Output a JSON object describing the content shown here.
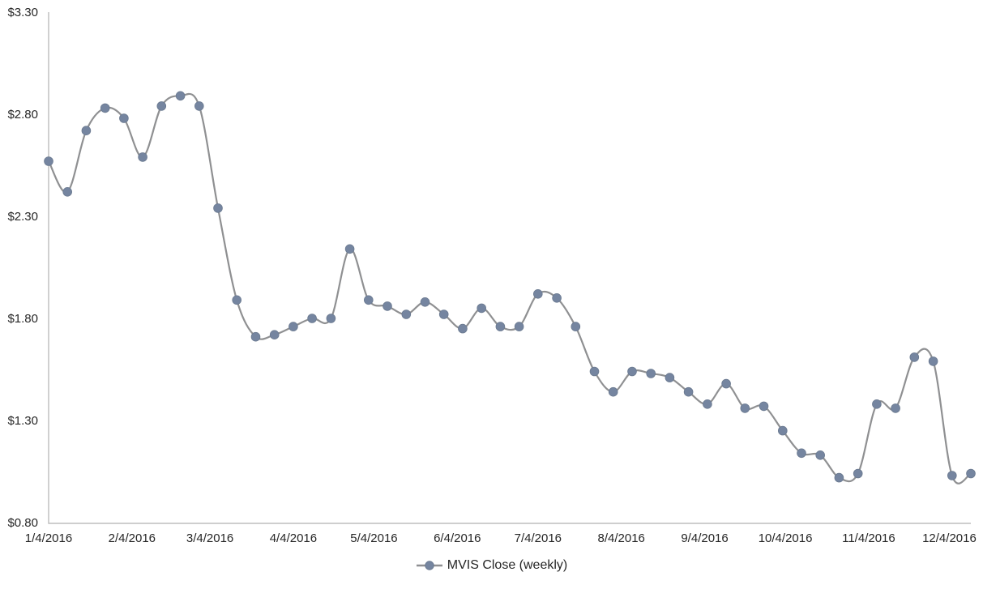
{
  "chart_data": {
    "type": "line",
    "title": "",
    "legend_position": "bottom",
    "grid": false,
    "smoothed": true,
    "marker_shape": "circle",
    "series": [
      {
        "name": "MVIS Close (weekly)",
        "dates": [
          "1/4/2016",
          "1/11/2016",
          "1/18/2016",
          "1/25/2016",
          "2/1/2016",
          "2/8/2016",
          "2/15/2016",
          "2/22/2016",
          "2/29/2016",
          "3/7/2016",
          "3/14/2016",
          "3/21/2016",
          "3/28/2016",
          "4/4/2016",
          "4/11/2016",
          "4/18/2016",
          "4/25/2016",
          "5/2/2016",
          "5/9/2016",
          "5/16/2016",
          "5/23/2016",
          "5/30/2016",
          "6/6/2016",
          "6/13/2016",
          "6/20/2016",
          "6/27/2016",
          "7/4/2016",
          "7/11/2016",
          "7/18/2016",
          "7/25/2016",
          "8/1/2016",
          "8/8/2016",
          "8/15/2016",
          "8/22/2016",
          "8/29/2016",
          "9/5/2016",
          "9/12/2016",
          "9/19/2016",
          "9/26/2016",
          "10/3/2016",
          "10/10/2016",
          "10/17/2016",
          "10/24/2016",
          "10/31/2016",
          "11/7/2016",
          "11/14/2016",
          "11/21/2016",
          "11/28/2016",
          "12/5/2016",
          "12/12/2016"
        ],
        "values": [
          2.57,
          2.42,
          2.72,
          2.83,
          2.78,
          2.59,
          2.84,
          2.89,
          2.84,
          2.34,
          1.89,
          1.71,
          1.72,
          1.76,
          1.8,
          1.8,
          2.14,
          1.89,
          1.86,
          1.82,
          1.88,
          1.82,
          1.75,
          1.85,
          1.76,
          1.76,
          1.92,
          1.9,
          1.76,
          1.54,
          1.44,
          1.54,
          1.53,
          1.51,
          1.44,
          1.38,
          1.48,
          1.36,
          1.37,
          1.25,
          1.14,
          1.13,
          1.02,
          1.04,
          1.38,
          1.36,
          1.61,
          1.59,
          1.03,
          1.04
        ]
      }
    ],
    "x_axis": {
      "ticks": [
        {
          "label": "1/4/2016",
          "day": 0
        },
        {
          "label": "2/4/2016",
          "day": 31
        },
        {
          "label": "3/4/2016",
          "day": 60
        },
        {
          "label": "4/4/2016",
          "day": 91
        },
        {
          "label": "5/4/2016",
          "day": 121
        },
        {
          "label": "6/4/2016",
          "day": 152
        },
        {
          "label": "7/4/2016",
          "day": 182
        },
        {
          "label": "8/4/2016",
          "day": 213
        },
        {
          "label": "9/4/2016",
          "day": 244
        },
        {
          "label": "10/4/2016",
          "day": 274
        },
        {
          "label": "11/4/2016",
          "day": 305
        },
        {
          "label": "12/4/2016",
          "day": 335
        }
      ],
      "range_days": [
        0,
        343
      ]
    },
    "y_axis": {
      "ticks": [
        {
          "label": "$3.30",
          "value": 3.3
        },
        {
          "label": "$2.80",
          "value": 2.8
        },
        {
          "label": "$2.30",
          "value": 2.3
        },
        {
          "label": "$1.80",
          "value": 1.8
        },
        {
          "label": "$1.30",
          "value": 1.3
        },
        {
          "label": "$0.80",
          "value": 0.8
        }
      ],
      "ylim": [
        0.8,
        3.3
      ]
    }
  },
  "colors": {
    "line": "#8f9092",
    "marker_fill": "#7585a0",
    "marker_stroke": "#6b7a90",
    "axis_line": "#bdbdbd",
    "label_text": "#262626",
    "background": "#ffffff"
  }
}
